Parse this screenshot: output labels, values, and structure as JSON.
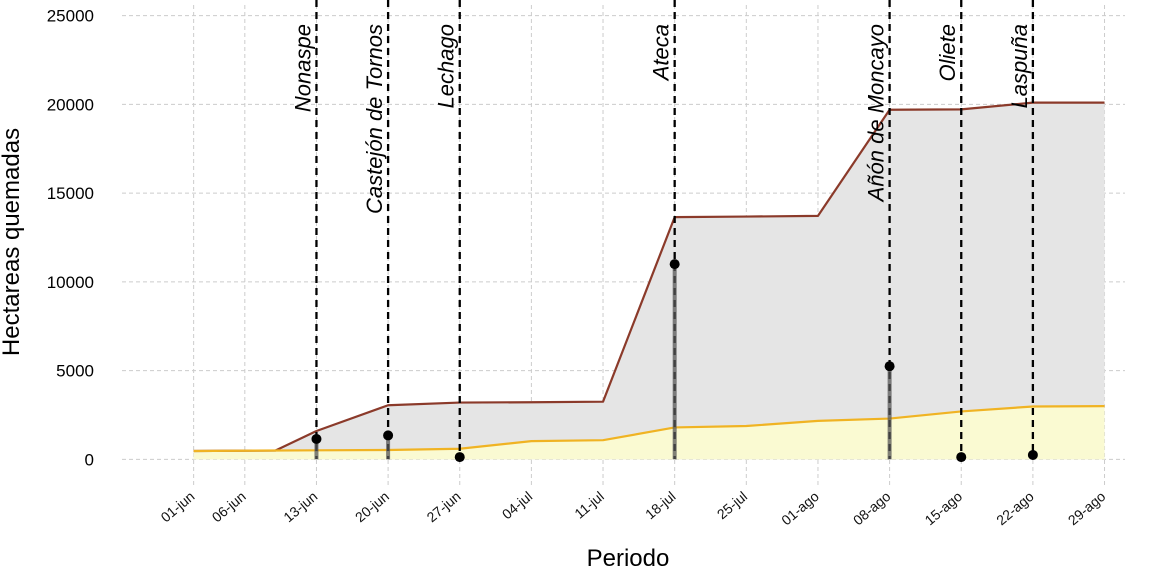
{
  "chart_data": {
    "type": "area",
    "title": "",
    "xlabel": "Periodo",
    "ylabel": "Hectareas quemadas",
    "ylim": [
      -1500,
      25600
    ],
    "yticks": [
      0,
      5000,
      10000,
      15000,
      20000,
      25000
    ],
    "xlim": [
      "2022-05-25",
      "2022-08-31"
    ],
    "xticks": [
      {
        "date": "2022-06-01",
        "label": "01-jun"
      },
      {
        "date": "2022-06-06",
        "label": "06-jun"
      },
      {
        "date": "2022-06-13",
        "label": "13-jun"
      },
      {
        "date": "2022-06-20",
        "label": "20-jun"
      },
      {
        "date": "2022-06-27",
        "label": "27-jun"
      },
      {
        "date": "2022-07-04",
        "label": "04-jul"
      },
      {
        "date": "2022-07-11",
        "label": "11-jul"
      },
      {
        "date": "2022-07-18",
        "label": "18-jul"
      },
      {
        "date": "2022-07-25",
        "label": "25-jul"
      },
      {
        "date": "2022-08-01",
        "label": "01-ago"
      },
      {
        "date": "2022-08-08",
        "label": "08-ago"
      },
      {
        "date": "2022-08-15",
        "label": "15-ago"
      },
      {
        "date": "2022-08-22",
        "label": "22-ago"
      },
      {
        "date": "2022-08-29",
        "label": "29-ago"
      }
    ],
    "grid": true,
    "series": [
      {
        "color": "#8b3a2a",
        "fill": "#e5e5e5",
        "points": [
          {
            "x": "2022-06-01",
            "y": 470
          },
          {
            "x": "2022-06-09",
            "y": 500
          },
          {
            "x": "2022-06-13",
            "y": 1600
          },
          {
            "x": "2022-06-20",
            "y": 3050
          },
          {
            "x": "2022-06-27",
            "y": 3200
          },
          {
            "x": "2022-07-04",
            "y": 3220
          },
          {
            "x": "2022-07-11",
            "y": 3250
          },
          {
            "x": "2022-07-18",
            "y": 13650
          },
          {
            "x": "2022-07-25",
            "y": 13680
          },
          {
            "x": "2022-08-01",
            "y": 13720
          },
          {
            "x": "2022-08-08",
            "y": 19700
          },
          {
            "x": "2022-08-15",
            "y": 19720
          },
          {
            "x": "2022-08-22",
            "y": 20100
          },
          {
            "x": "2022-08-29",
            "y": 20100
          }
        ]
      },
      {
        "color": "#f0b323",
        "fill": "#fafad2",
        "points": [
          {
            "x": "2022-06-01",
            "y": 470
          },
          {
            "x": "2022-06-09",
            "y": 500
          },
          {
            "x": "2022-06-13",
            "y": 510
          },
          {
            "x": "2022-06-20",
            "y": 530
          },
          {
            "x": "2022-06-27",
            "y": 600
          },
          {
            "x": "2022-07-04",
            "y": 1030
          },
          {
            "x": "2022-07-11",
            "y": 1080
          },
          {
            "x": "2022-07-18",
            "y": 1800
          },
          {
            "x": "2022-07-25",
            "y": 1880
          },
          {
            "x": "2022-08-01",
            "y": 2170
          },
          {
            "x": "2022-08-08",
            "y": 2300
          },
          {
            "x": "2022-08-15",
            "y": 2700
          },
          {
            "x": "2022-08-22",
            "y": 2980
          },
          {
            "x": "2022-08-29",
            "y": 3000
          }
        ]
      }
    ],
    "events": [
      {
        "date": "2022-06-13",
        "label": "Nonaspe",
        "value": 1150
      },
      {
        "date": "2022-06-20",
        "label": "Castejón de Tornos",
        "value": 1350
      },
      {
        "date": "2022-06-27",
        "label": "Lechago",
        "value": 130
      },
      {
        "date": "2022-07-18",
        "label": "Ateca",
        "value": 11000
      },
      {
        "date": "2022-08-08",
        "label": "Añón de Moncayo",
        "value": 5250
      },
      {
        "date": "2022-08-15",
        "label": "Oliete",
        "value": 130
      },
      {
        "date": "2022-08-22",
        "label": "Laspuña",
        "value": 250
      }
    ],
    "colors": {
      "event_line": "#000000",
      "point": "#000000",
      "stem": "#555555"
    }
  }
}
